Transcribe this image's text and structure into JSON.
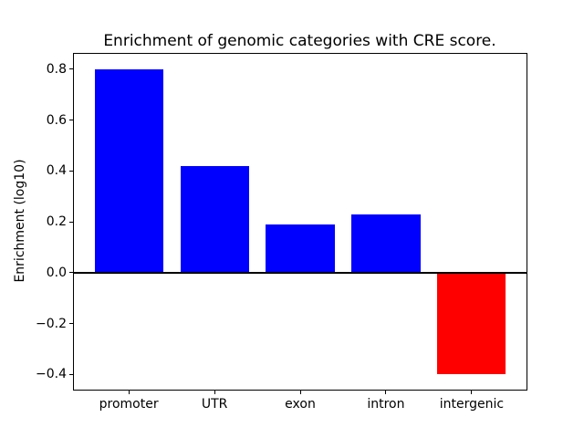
{
  "chart_data": {
    "type": "bar",
    "title": "Enrichment of genomic categories with CRE score.",
    "xlabel": "",
    "ylabel": "Enrichment (log10)",
    "categories": [
      "promoter",
      "UTR",
      "exon",
      "intron",
      "intergenic"
    ],
    "values": [
      0.8,
      0.42,
      0.19,
      0.23,
      -0.4
    ],
    "bar_colors": [
      "#0000ff",
      "#0000ff",
      "#0000ff",
      "#0000ff",
      "#ff0000"
    ],
    "positive_color": "#0000ff",
    "negative_color": "#ff0000",
    "ylim": [
      -0.46,
      0.86
    ],
    "xlim": [
      -0.64,
      4.64
    ],
    "yticks": [
      0.8,
      0.6,
      0.4,
      0.2,
      0.0,
      -0.2,
      -0.4
    ],
    "ytick_labels": [
      "0.8",
      "0.6",
      "0.4",
      "0.2",
      "0.0",
      "−0.2",
      "−0.4"
    ],
    "bar_width_fraction": 0.8,
    "grid": false,
    "zero_line": true,
    "legend": null,
    "frame": "full-box",
    "background_color": "#ffffff",
    "axis_color": "#000000"
  }
}
